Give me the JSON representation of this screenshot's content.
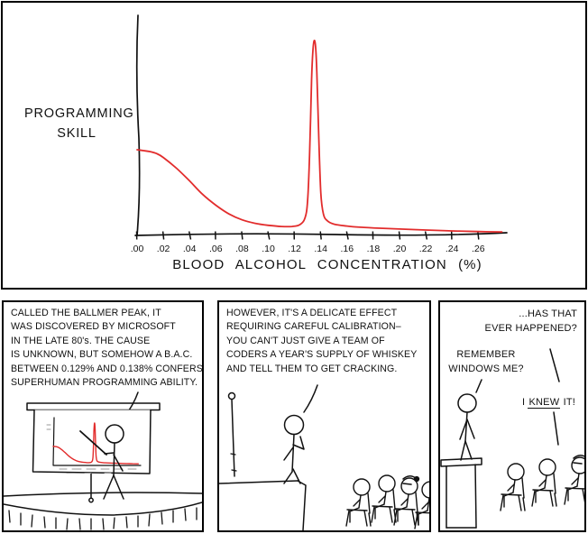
{
  "colors": {
    "ink": "#111111",
    "curve_red": "#e22c2c",
    "panel_border": "#000000",
    "background": "#ffffff"
  },
  "chart_panel": {
    "ylabel_lines": [
      "PROGRAMMING",
      "SKILL"
    ],
    "xlabel": "BLOOD ALCOHOL CONCENTRATION (%)"
  },
  "chart_data": {
    "type": "line",
    "title": "",
    "xlabel": "BLOOD ALCOHOL CONCENTRATION (%)",
    "ylabel": "PROGRAMMING SKILL",
    "xlim": [
      0,
      0.28
    ],
    "ylim": [
      0,
      1.1
    ],
    "grid": false,
    "legend": "none",
    "x_tick_labels": [
      ".00",
      ".02",
      ".04",
      ".06",
      ".08",
      ".10",
      ".12",
      ".14",
      ".16",
      ".18",
      ".20",
      ".22",
      ".24",
      ".26"
    ],
    "x_ticks": [
      0.0,
      0.02,
      0.04,
      0.06,
      0.08,
      0.1,
      0.12,
      0.14,
      0.16,
      0.18,
      0.2,
      0.22,
      0.24,
      0.26
    ],
    "peak_location_note": "sharp peak centered near BAC 0.135",
    "series": [
      {
        "name": "programming-skill-vs-bac",
        "color": "#e22c2c",
        "x": [
          0.0,
          0.005,
          0.01,
          0.015,
          0.02,
          0.03,
          0.04,
          0.05,
          0.06,
          0.07,
          0.08,
          0.09,
          0.1,
          0.11,
          0.118,
          0.124,
          0.128,
          0.13,
          0.1315,
          0.133,
          0.134,
          0.135,
          0.136,
          0.137,
          0.1385,
          0.14,
          0.142,
          0.145,
          0.15,
          0.16,
          0.17,
          0.185,
          0.2,
          0.22,
          0.24,
          0.26,
          0.278
        ],
        "y": [
          0.44,
          0.435,
          0.43,
          0.42,
          0.4,
          0.345,
          0.28,
          0.21,
          0.155,
          0.11,
          0.08,
          0.062,
          0.052,
          0.046,
          0.046,
          0.055,
          0.09,
          0.18,
          0.42,
          0.8,
          0.95,
          1.0,
          0.97,
          0.84,
          0.5,
          0.22,
          0.11,
          0.075,
          0.058,
          0.048,
          0.042,
          0.037,
          0.033,
          0.028,
          0.023,
          0.02,
          0.018
        ]
      }
    ]
  },
  "panels": {
    "panel1": {
      "lines": [
        "CALLED THE BALLMER PEAK, IT",
        "WAS DISCOVERED BY MICROSOFT",
        "IN THE LATE 80's.  THE CAUSE",
        "IS UNKNOWN, BUT SOMEHOW A B.A.C.",
        "BETWEEN 0.129% AND 0.138% CONFERS",
        "SUPERHUMAN PROGRAMMING ABILITY."
      ]
    },
    "panel2": {
      "lines": [
        "HOWEVER, IT'S A DELICATE EFFECT",
        "REQUIRING CAREFUL CALIBRATION–",
        "YOU CAN'T JUST GIVE A TEAM OF",
        "CODERS A YEAR'S SUPPLY OF WHISKEY",
        "AND TELL THEM TO GET CRACKING."
      ]
    },
    "panel3": {
      "speech1_lines": [
        "...HAS THAT",
        "EVER HAPPENED?"
      ],
      "speech2_lines": [
        "REMEMBER",
        "WINDOWS ME?"
      ],
      "speech3": {
        "prefix": "I",
        "underlined": "KNEW",
        "suffix": "IT!"
      }
    }
  }
}
